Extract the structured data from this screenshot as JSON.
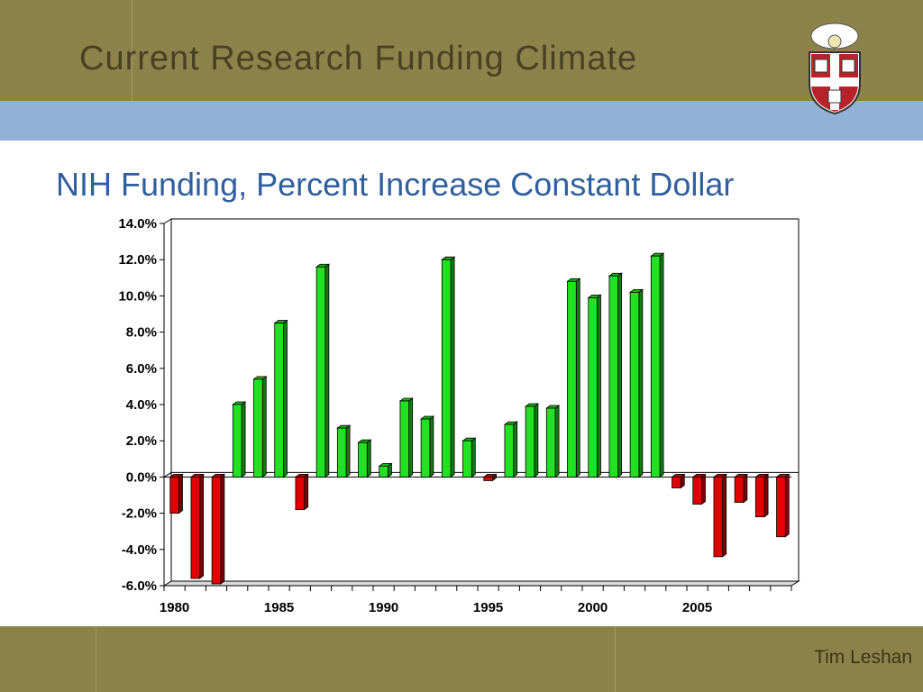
{
  "slide": {
    "title": "Current Research Funding Climate",
    "footer": "Tim Leshan"
  },
  "logo": {
    "icon": "university-shield-icon"
  },
  "colors": {
    "band": "#8c834a",
    "blue_band": "#92b1d6",
    "positive": "#22e022",
    "negative": "#e00000",
    "title": "#2f5f9e"
  },
  "chart_data": {
    "type": "bar",
    "title": "NIH Funding, Percent Increase Constant Dollar",
    "xlabel": "",
    "ylabel": "",
    "ylim": [
      -6,
      14
    ],
    "y_ticks": [
      "14.0%",
      "12.0%",
      "10.0%",
      "8.0%",
      "6.0%",
      "4.0%",
      "2.0%",
      "0.0%",
      "-2.0%",
      "-4.0%",
      "-6.0%"
    ],
    "x_tick_labels": [
      "1980",
      "1985",
      "1990",
      "1995",
      "2000",
      "2005"
    ],
    "categories": [
      1980,
      1981,
      1982,
      1983,
      1984,
      1985,
      1986,
      1987,
      1988,
      1989,
      1990,
      1991,
      1992,
      1993,
      1994,
      1995,
      1996,
      1997,
      1998,
      1999,
      2000,
      2001,
      2002,
      2003,
      2004,
      2005,
      2006,
      2007,
      2008,
      2009
    ],
    "values": [
      -2.0,
      -5.6,
      -5.9,
      4.0,
      5.4,
      8.5,
      -1.8,
      11.6,
      2.7,
      1.9,
      0.6,
      4.2,
      3.2,
      12.0,
      2.0,
      -0.2,
      2.9,
      3.9,
      3.8,
      10.8,
      9.9,
      11.1,
      10.2,
      12.2,
      -0.6,
      -1.5,
      -4.4,
      -1.4,
      -2.2,
      -3.3
    ],
    "grid": false
  }
}
